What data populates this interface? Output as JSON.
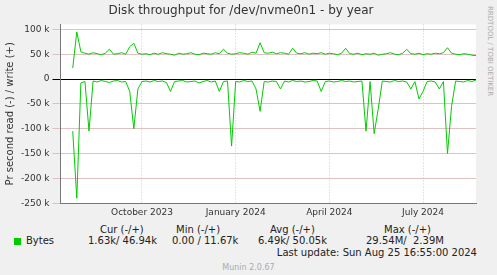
{
  "chart_data": {
    "type": "line",
    "title": "Disk throughput for /dev/nvme0n1 - by year",
    "y_label": "Pr second read (-) / write (+)",
    "side_text": "RRDTOOL / TOBI OETIKER",
    "categories": [
      null,
      null,
      null,
      null,
      null,
      null,
      null,
      null,
      null,
      null,
      null,
      null,
      null,
      null,
      null,
      null,
      null,
      null,
      null,
      null,
      "October 2023",
      null,
      null,
      null,
      null,
      null,
      null,
      null,
      null,
      null,
      null,
      null,
      null,
      null,
      null,
      null,
      null,
      null,
      null,
      null,
      null,
      null,
      null,
      "January 2024",
      null,
      null,
      null,
      null,
      null,
      null,
      null,
      null,
      null,
      null,
      null,
      null,
      null,
      null,
      null,
      null,
      null,
      null,
      null,
      null,
      null,
      null,
      "April 2024",
      null,
      null,
      null,
      null,
      null,
      null,
      null,
      null,
      null,
      null,
      null,
      null,
      null,
      null,
      null,
      null,
      null,
      null,
      null,
      null,
      null,
      null,
      "July 2024",
      null,
      null,
      null,
      null,
      null,
      null,
      null,
      null,
      null,
      null,
      null,
      null,
      null
    ],
    "series": [
      {
        "name": "Bytes",
        "color": "#00cc00",
        "values": [
          null,
          null,
          null,
          22000,
          95000,
          55000,
          52000,
          50000,
          53000,
          51000,
          49000,
          52000,
          60000,
          50000,
          51000,
          53000,
          50000,
          65000,
          72000,
          52000,
          50000,
          51000,
          49000,
          52000,
          50000,
          53000,
          51000,
          50000,
          48000,
          52000,
          50000,
          51000,
          53000,
          50000,
          49000,
          52000,
          51000,
          50000,
          53000,
          51000,
          60000,
          52000,
          50000,
          51000,
          53000,
          52000,
          50000,
          54000,
          52000,
          73000,
          53000,
          52000,
          54000,
          51000,
          53000,
          52000,
          50000,
          62000,
          52000,
          51000,
          53000,
          50000,
          52000,
          51000,
          53000,
          50000,
          52000,
          51000,
          49000,
          52000,
          62000,
          51000,
          50000,
          52000,
          49000,
          51000,
          50000,
          52000,
          48000,
          50000,
          51000,
          53000,
          50000,
          49000,
          52000,
          60000,
          51000,
          50000,
          52000,
          49000,
          51000,
          50000,
          52000,
          51000,
          53000,
          63000,
          52000,
          50000,
          49000,
          51000,
          50000,
          48000,
          47000
        ]
      },
      {
        "color": "#00cc00",
        "values": [
          null,
          null,
          null,
          -105000,
          -240000,
          -8000,
          -5000,
          -105000,
          -4000,
          -6000,
          -3000,
          -5000,
          -7000,
          -4000,
          -3000,
          -6000,
          -5000,
          -25000,
          -100000,
          -20000,
          -5000,
          -4000,
          -6000,
          -3000,
          -5000,
          -4000,
          -7000,
          -25000,
          -5000,
          -4000,
          -3000,
          -6000,
          -5000,
          -4000,
          -8000,
          -5000,
          -3000,
          -6000,
          -4000,
          -25000,
          -5000,
          -4000,
          -135000,
          -5000,
          -6000,
          -3000,
          -5000,
          -4000,
          -20000,
          -65000,
          -5000,
          -6000,
          -4000,
          -5000,
          -20000,
          -4000,
          -6000,
          -3000,
          -5000,
          -4000,
          -6000,
          -5000,
          -3000,
          -4000,
          -25000,
          -5000,
          -4000,
          -6000,
          -5000,
          -3000,
          -5000,
          -4000,
          -6000,
          -5000,
          -4000,
          -105000,
          -5000,
          -110000,
          -60000,
          -4000,
          -5000,
          -6000,
          -3000,
          -5000,
          -4000,
          -6000,
          -20000,
          -5000,
          -40000,
          -25000,
          -5000,
          -4000,
          -6000,
          -20000,
          -5000,
          -150000,
          -55000,
          -4000,
          -5000,
          -6000,
          -3000,
          -5000,
          -2000
        ]
      }
    ],
    "ylim": [
      -250000,
      110000
    ],
    "yticks": [
      {
        "value": -250000,
        "label": "-250 k"
      },
      {
        "value": -200000,
        "label": "-200 k"
      },
      {
        "value": -150000,
        "label": "-150 k"
      },
      {
        "value": -100000,
        "label": "-100 k"
      },
      {
        "value": -50000,
        "label": "-50 k"
      },
      0,
      {
        "value": 50000,
        "label": "50 k"
      },
      {
        "value": 100000,
        "label": "100 k"
      }
    ],
    "grid": true,
    "summary": {
      "headers": [
        "Cur (-/+)",
        "Min (-/+)",
        "Avg (-/+)",
        "Max (-/+)"
      ],
      "values": [
        "1.63k/ 46.94k",
        "0.00 / 11.67k",
        "6.49k/ 50.05k",
        "29.54M/  2.39M"
      ]
    },
    "last_update": "Last update: Sun Aug 25 16:55:00 2024",
    "footer": "Munin 2.0.67"
  }
}
